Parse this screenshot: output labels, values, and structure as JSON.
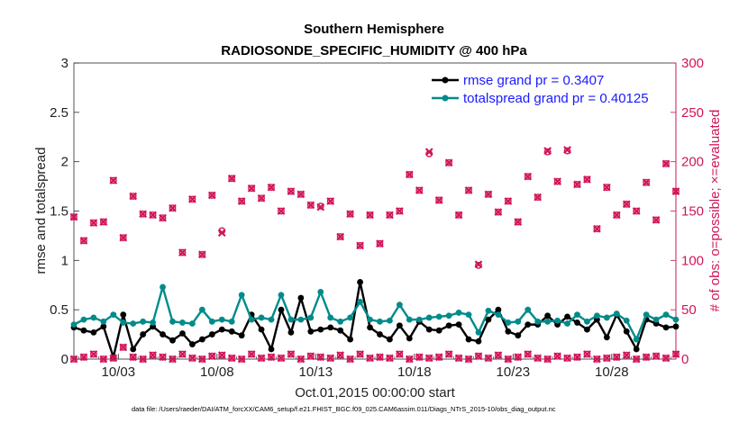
{
  "chart_data": {
    "type": "line",
    "title": "Southern Hemisphere",
    "subtitle": "RADIOSONDE_SPECIFIC_HUMIDITY @ 400 hPa",
    "xlabel": "Oct.01,2015 00:00:00 start",
    "ylabel_left": "rmse and totalspread",
    "ylabel_right": "# of obs: o=possible; ×=evaluated",
    "footnote": "data file: /Users/raeder/DAI/ATM_forcXX/CAM6_setup/f.e21.FHIST_BGC.f09_025.CAM6assim.011/Diags_NTrS_2015-10/obs_diag_output.nc",
    "x_tick_labels": [
      "10/03",
      "10/08",
      "10/13",
      "10/18",
      "10/23",
      "10/28"
    ],
    "x_tick_days": [
      3,
      8,
      13,
      18,
      23,
      28
    ],
    "x_range_days": [
      0.75,
      31.25
    ],
    "ylim_left": [
      0,
      3
    ],
    "yticks_left": [
      "0",
      "0.5",
      "1",
      "1.5",
      "2",
      "2.5",
      "3"
    ],
    "ylim_right": [
      0,
      300
    ],
    "yticks_right": [
      "0",
      "50",
      "100",
      "150",
      "200",
      "250",
      "300"
    ],
    "x_days": [
      0.75,
      1.25,
      1.75,
      2.25,
      2.75,
      3.25,
      3.75,
      4.25,
      4.75,
      5.25,
      5.75,
      6.25,
      6.75,
      7.25,
      7.75,
      8.25,
      8.75,
      9.25,
      9.75,
      10.25,
      10.75,
      11.25,
      11.75,
      12.25,
      12.75,
      13.25,
      13.75,
      14.25,
      14.75,
      15.25,
      15.75,
      16.25,
      16.75,
      17.25,
      17.75,
      18.25,
      18.75,
      19.25,
      19.75,
      20.25,
      20.75,
      21.25,
      21.75,
      22.25,
      22.75,
      23.25,
      23.75,
      24.25,
      24.75,
      25.25,
      25.75,
      26.25,
      26.75,
      27.25,
      27.75,
      28.25,
      28.75,
      29.25,
      29.75,
      30.25,
      30.75,
      31.25
    ],
    "series": [
      {
        "name": "rmse grand pr = 0.3407",
        "color": "#000000",
        "axis": "left",
        "values": [
          0.32,
          0.29,
          0.27,
          0.33,
          0.02,
          0.45,
          0.1,
          0.25,
          0.33,
          0.25,
          0.19,
          0.26,
          0.15,
          0.2,
          0.25,
          0.3,
          0.28,
          0.24,
          0.45,
          0.3,
          0.1,
          0.5,
          0.27,
          0.62,
          0.28,
          0.3,
          0.32,
          0.29,
          0.2,
          0.78,
          0.32,
          0.25,
          0.2,
          0.34,
          0.21,
          0.38,
          0.3,
          0.29,
          0.34,
          0.35,
          0.2,
          0.18,
          0.4,
          0.5,
          0.28,
          0.24,
          0.35,
          0.35,
          0.44,
          0.35,
          0.43,
          0.37,
          0.3,
          0.4,
          0.22,
          0.45,
          0.28,
          0.1,
          0.4,
          0.36,
          0.32,
          0.33
        ]
      },
      {
        "name": "totalspread grand pr = 0.40125",
        "color": "#008b8b",
        "axis": "left",
        "values": [
          0.35,
          0.4,
          0.42,
          0.38,
          0.45,
          0.37,
          0.36,
          0.38,
          0.37,
          0.73,
          0.38,
          0.37,
          0.36,
          0.5,
          0.38,
          0.4,
          0.38,
          0.65,
          0.4,
          0.42,
          0.4,
          0.65,
          0.4,
          0.4,
          0.42,
          0.68,
          0.42,
          0.38,
          0.42,
          0.58,
          0.4,
          0.38,
          0.39,
          0.55,
          0.4,
          0.4,
          0.42,
          0.43,
          0.44,
          0.47,
          0.45,
          0.27,
          0.49,
          0.45,
          0.37,
          0.38,
          0.5,
          0.38,
          0.38,
          0.39,
          0.36,
          0.45,
          0.38,
          0.44,
          0.42,
          0.46,
          0.39,
          0.2,
          0.45,
          0.4,
          0.45,
          0.4
        ]
      },
      {
        "name": "possible",
        "color": "#d1155a",
        "marker": "circle",
        "axis": "right",
        "values": [
          144,
          120,
          138,
          139,
          181,
          123,
          165,
          147,
          146,
          143,
          153,
          108,
          162,
          106,
          166,
          130,
          183,
          160,
          173,
          163,
          174,
          150,
          170,
          167,
          156,
          155,
          160,
          124,
          147,
          115,
          146,
          117,
          146,
          150,
          187,
          171,
          208,
          161,
          199,
          146,
          171,
          95,
          167,
          149,
          160,
          139,
          185,
          164,
          210,
          180,
          211,
          177,
          182,
          132,
          174,
          146,
          157,
          150,
          179,
          141,
          198,
          170
        ]
      },
      {
        "name": "evaluated",
        "color": "#d1155a",
        "marker": "x",
        "axis": "right",
        "values": [
          144,
          120,
          138,
          139,
          181,
          123,
          165,
          147,
          146,
          143,
          153,
          108,
          162,
          106,
          166,
          128,
          183,
          160,
          173,
          163,
          174,
          150,
          170,
          167,
          156,
          154,
          160,
          124,
          147,
          115,
          146,
          117,
          146,
          150,
          187,
          171,
          210,
          161,
          199,
          146,
          171,
          96,
          167,
          149,
          160,
          139,
          185,
          164,
          211,
          180,
          212,
          177,
          182,
          132,
          174,
          146,
          157,
          150,
          179,
          141,
          198,
          170
        ]
      },
      {
        "name": "rmse-count-possible",
        "color": "#d1155a",
        "marker": "circle",
        "axis": "right",
        "values": [
          0,
          2,
          5,
          0,
          1,
          12,
          2,
          0,
          4,
          2,
          0,
          5,
          1,
          0,
          3,
          4,
          1,
          0,
          5,
          1,
          2,
          1,
          5,
          0,
          3,
          2,
          1,
          4,
          0,
          5,
          1,
          2,
          1,
          5,
          0,
          2,
          1,
          2,
          5,
          1,
          0,
          3,
          1,
          4,
          0,
          2,
          5,
          1,
          0,
          3,
          1,
          2,
          5,
          0,
          1,
          2,
          4,
          0,
          2,
          3,
          1,
          5
        ]
      },
      {
        "name": "rmse-count-evaluated",
        "color": "#d1155a",
        "marker": "x",
        "axis": "right",
        "values": [
          0,
          2,
          5,
          0,
          1,
          12,
          2,
          0,
          4,
          2,
          0,
          5,
          1,
          0,
          3,
          4,
          1,
          0,
          5,
          1,
          2,
          1,
          5,
          0,
          3,
          2,
          1,
          4,
          0,
          5,
          1,
          2,
          1,
          5,
          0,
          2,
          1,
          2,
          5,
          1,
          0,
          3,
          1,
          4,
          0,
          2,
          5,
          1,
          0,
          3,
          1,
          2,
          5,
          0,
          1,
          2,
          4,
          0,
          2,
          3,
          1,
          5
        ]
      }
    ],
    "legend": {
      "placement": "top-right",
      "entries": [
        "rmse grand pr = 0.3407",
        "totalspread grand pr = 0.40125"
      ]
    },
    "grid": false
  }
}
